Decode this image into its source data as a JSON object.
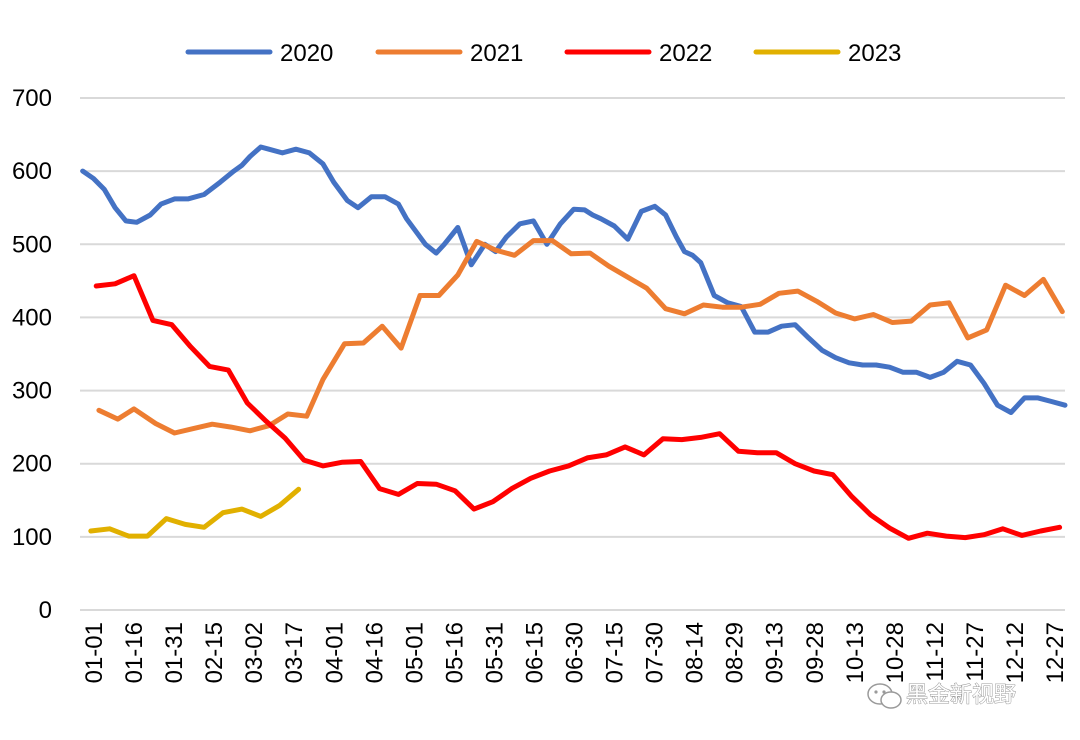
{
  "chart_data": {
    "type": "line",
    "title": "",
    "xlabel": "",
    "ylabel": "",
    "ylim": [
      0,
      700
    ],
    "yticks": [
      0,
      100,
      200,
      300,
      400,
      500,
      600,
      700
    ],
    "grid": true,
    "legend_position": "top-center",
    "x_tick_labels": [
      "01-01",
      "01-16",
      "01-31",
      "02-15",
      "03-02",
      "03-17",
      "04-01",
      "04-16",
      "05-01",
      "05-16",
      "05-31",
      "06-15",
      "06-30",
      "07-15",
      "07-30",
      "08-14",
      "08-29",
      "09-13",
      "09-28",
      "10-13",
      "10-28",
      "11-12",
      "11-27",
      "12-12",
      "12-27"
    ],
    "x_domain": [
      0,
      365
    ],
    "series": [
      {
        "name": "2020",
        "color": "#4472C4",
        "x": [
          1,
          5,
          9,
          13,
          17,
          21,
          26,
          30,
          35,
          40,
          46,
          52,
          57,
          60,
          63,
          67,
          70,
          75,
          80,
          85,
          90,
          94,
          99,
          103,
          108,
          113,
          118,
          121,
          125,
          128,
          132,
          135,
          140,
          145,
          150,
          154,
          158,
          163,
          168,
          173,
          178,
          183,
          187,
          190,
          193,
          198,
          203,
          208,
          213,
          217,
          221,
          224,
          227,
          230,
          235,
          240,
          245,
          250,
          255,
          260,
          265,
          270,
          275,
          280,
          285,
          290,
          295,
          300,
          305,
          310,
          315,
          320,
          325,
          330,
          335,
          340,
          345,
          350,
          355,
          360,
          365
        ],
        "values": [
          600,
          590,
          575,
          550,
          532,
          530,
          540,
          555,
          562,
          562,
          568,
          585,
          600,
          608,
          620,
          633,
          630,
          625,
          630,
          625,
          610,
          585,
          560,
          550,
          565,
          565,
          555,
          535,
          515,
          500,
          488,
          500,
          523,
          472,
          500,
          490,
          510,
          528,
          532,
          500,
          528,
          548,
          547,
          540,
          535,
          525,
          507,
          545,
          552,
          540,
          510,
          490,
          485,
          475,
          430,
          420,
          415,
          380,
          380,
          388,
          390,
          372,
          355,
          345,
          338,
          335,
          335,
          332,
          325,
          325,
          318,
          325,
          340,
          335,
          310,
          280,
          270,
          290,
          290,
          285,
          280
        ]
      },
      {
        "name": "2021",
        "color": "#ED7D31",
        "x": [
          7,
          14,
          20,
          28,
          35,
          42,
          49,
          56,
          63,
          70,
          77,
          84,
          90,
          98,
          105,
          112,
          119,
          126,
          133,
          140,
          147,
          154,
          161,
          168,
          175,
          182,
          189,
          196,
          203,
          210,
          217,
          224,
          231,
          238,
          245,
          252,
          259,
          266,
          273,
          280,
          287,
          294,
          301,
          308,
          315,
          322,
          329,
          336,
          343,
          350,
          357,
          364
        ],
        "values": [
          273,
          261,
          275,
          255,
          242,
          248,
          254,
          250,
          245,
          252,
          268,
          265,
          315,
          364,
          365,
          388,
          358,
          430,
          430,
          458,
          504,
          492,
          485,
          505,
          505,
          487,
          488,
          470,
          455,
          440,
          412,
          405,
          417,
          414,
          414,
          418,
          433,
          436,
          422,
          406,
          398,
          404,
          393,
          395,
          417,
          420,
          372,
          383,
          444,
          430,
          452,
          408
        ]
      },
      {
        "name": "2022",
        "color": "#FF0000",
        "x": [
          6,
          13,
          20,
          27,
          34,
          41,
          48,
          55,
          62,
          69,
          76,
          83,
          90,
          97,
          104,
          111,
          118,
          125,
          132,
          139,
          146,
          153,
          160,
          167,
          174,
          181,
          188,
          195,
          202,
          209,
          216,
          223,
          230,
          237,
          244,
          251,
          258,
          265,
          272,
          279,
          286,
          293,
          300,
          307,
          314,
          321,
          328,
          335,
          342,
          349,
          356,
          363
        ],
        "values": [
          443,
          446,
          457,
          396,
          390,
          360,
          333,
          328,
          283,
          258,
          235,
          205,
          197,
          202,
          203,
          166,
          158,
          173,
          172,
          163,
          138,
          148,
          166,
          180,
          190,
          197,
          208,
          212,
          223,
          212,
          234,
          233,
          236,
          241,
          217,
          215,
          215,
          200,
          190,
          185,
          155,
          130,
          112,
          98,
          105,
          101,
          99,
          103,
          111,
          102,
          108,
          113
        ]
      },
      {
        "name": "2023",
        "color": "#E1B000",
        "x": [
          4,
          11,
          18,
          25,
          32,
          39,
          46,
          53,
          60,
          67,
          74,
          81
        ],
        "values": [
          108,
          111,
          101,
          101,
          125,
          117,
          113,
          133,
          138,
          128,
          143,
          165
        ]
      }
    ]
  },
  "watermark": {
    "text": "黑金新视野"
  }
}
